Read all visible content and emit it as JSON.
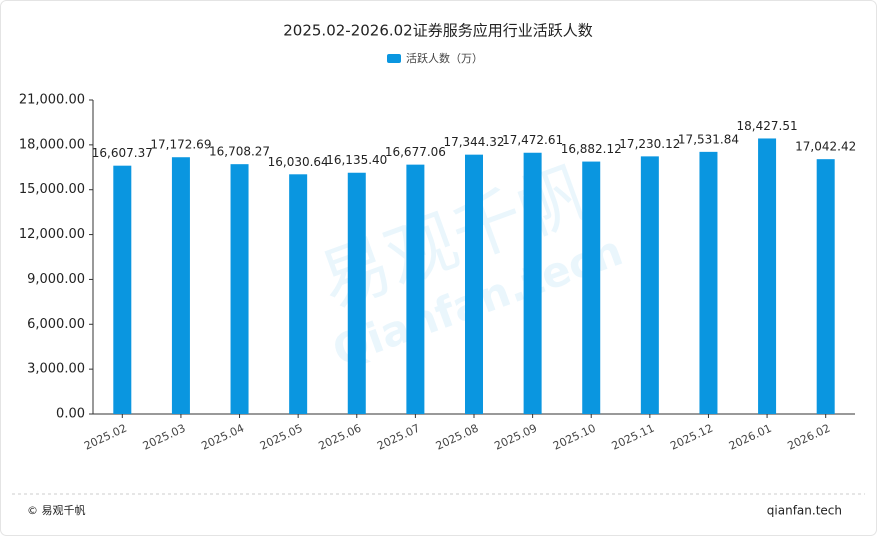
{
  "chart_data": {
    "type": "bar",
    "title": "2025.02-2026.02证券服务应用行业活跃人数",
    "categories": [
      "2025.02",
      "2025.03",
      "2025.04",
      "2025.05",
      "2025.06",
      "2025.07",
      "2025.08",
      "2025.09",
      "2025.10",
      "2025.11",
      "2025.12",
      "2026.01",
      "2026.02"
    ],
    "series": [
      {
        "name": "活跃人数（万）",
        "color": "#0a96e0",
        "values": [
          16607.37,
          17172.69,
          16708.27,
          16030.64,
          16135.4,
          16677.06,
          17344.32,
          17472.61,
          16882.12,
          17230.12,
          17531.84,
          18427.51,
          17042.42
        ],
        "value_labels": [
          "16,607.37",
          "17,172.69",
          "16,708.27",
          "16,030.64",
          "16,135.40",
          "16,677.06",
          "17,344.32",
          "17,472.61",
          "16,882.12",
          "17,230.12",
          "17,531.84",
          "18,427.51",
          "17,042.42"
        ]
      }
    ],
    "ylim": [
      0,
      21000
    ],
    "yticks": [
      {
        "value": 0,
        "label": "0.00"
      },
      {
        "value": 3000,
        "label": "3,000.00"
      },
      {
        "value": 6000,
        "label": "6,000.00"
      },
      {
        "value": 9000,
        "label": "9,000.00"
      },
      {
        "value": 12000,
        "label": "12,000.00"
      },
      {
        "value": 15000,
        "label": "15,000.00"
      },
      {
        "value": 18000,
        "label": "18,000.00"
      },
      {
        "value": 21000,
        "label": "21,000.00"
      }
    ],
    "grid": false,
    "legend": "top",
    "watermark": "易观千帆",
    "watermark_sub": "Qianfan.tech",
    "footer_left": "© 易观千帆",
    "footer_right": "qianfan.tech"
  }
}
